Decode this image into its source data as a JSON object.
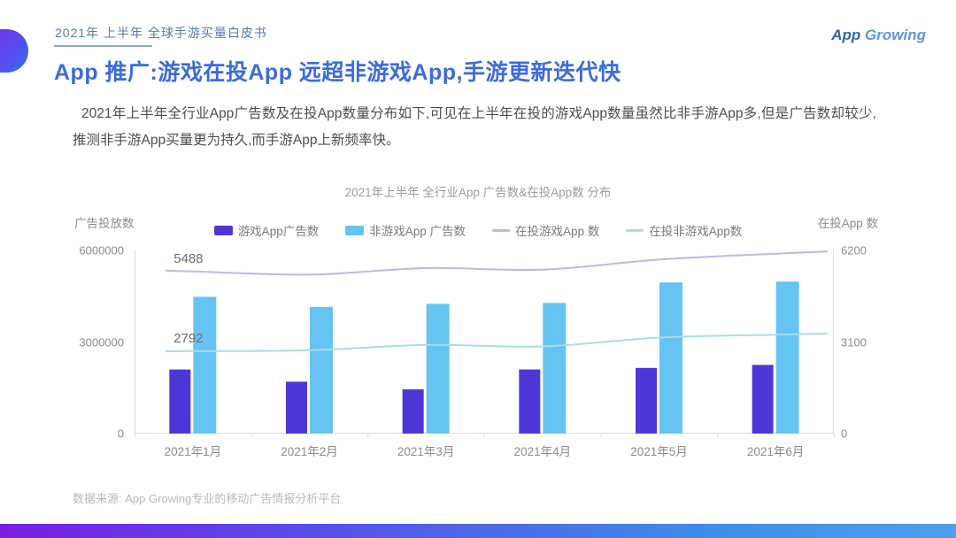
{
  "slide": {
    "eyebrow": "2021年 上半年 全球手游买量白皮书",
    "logo": {
      "app": "App",
      "growing": "Growing"
    },
    "title": "App 推广:游戏在投App 远超非游戏App,手游更新迭代快",
    "paragraph": "2021年上半年全行业App广告数及在投App数量分布如下,可见在上半年在投的游戏App数量虽然比非手游App多,但是广告数却较少,推测非手游App买量更为持久,而手游App上新频率快。",
    "source": "数据来源: App Growing专业的移动广告情报分析平台"
  },
  "chart_data": {
    "type": "bar",
    "subtype": "combo-bar-line-dual-axis",
    "title": "2021年上半年 全行业App 广告数&在投App数 分布",
    "categories": [
      "2021年1月",
      "2021年2月",
      "2021年3月",
      "2021年4月",
      "2021年5月",
      "2021年6月"
    ],
    "left_axis": {
      "label": "广告投放数",
      "ylim": [
        0,
        6000000
      ],
      "ticks": [
        6000000,
        3000000,
        0
      ]
    },
    "right_axis": {
      "label": "在投App 数",
      "ylim": [
        0,
        6200
      ],
      "ticks": [
        6200,
        3100,
        0
      ]
    },
    "grid": false,
    "legend_position": "top",
    "series": [
      {
        "name": "游戏App广告数",
        "type": "bar",
        "axis": "left",
        "color": "#4d38d7",
        "values": [
          2100000,
          1700000,
          1450000,
          2100000,
          2150000,
          2250000
        ]
      },
      {
        "name": "非游戏App 广告数",
        "type": "bar",
        "axis": "left",
        "color": "#66c4f2",
        "values": [
          4480000,
          4150000,
          4250000,
          4280000,
          4950000,
          4980000
        ]
      },
      {
        "name": "在投游戏App 数",
        "type": "line",
        "axis": "right",
        "color": "#b9bae8",
        "values": [
          5488,
          5380,
          5600,
          5550,
          5890,
          6090
        ],
        "first_point_label": "5488"
      },
      {
        "name": "在投非游戏App数",
        "type": "line",
        "axis": "right",
        "color": "#a9dceb",
        "values": [
          2792,
          2820,
          3000,
          2950,
          3250,
          3350
        ],
        "first_point_label": "2792"
      }
    ],
    "annotations": [
      {
        "text": "5488",
        "series": "在投游戏App 数",
        "point_index": 0
      },
      {
        "text": "2792",
        "series": "在投非游戏App数",
        "point_index": 0
      }
    ]
  },
  "colors": {
    "title_blue": "#3c6cd9",
    "eyebrow_blue": "#567ba8",
    "axis_line": "#dcdcdc",
    "annotation_text": "#6e6e6e",
    "pill_gradient": [
      "#7c2ce8",
      "#3a66f2"
    ],
    "bottom_bar_gradient": [
      "#7b1fe2",
      "#3e8ee8"
    ]
  }
}
